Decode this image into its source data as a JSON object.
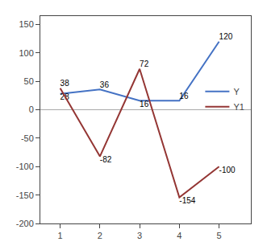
{
  "chart_data": {
    "type": "line",
    "x": [
      1,
      2,
      3,
      4,
      5
    ],
    "series": [
      {
        "name": "Y",
        "color": "#4472C4",
        "values": [
          28,
          36,
          16,
          16,
          120
        ]
      },
      {
        "name": "Y1",
        "color": "#943634",
        "values": [
          38,
          -82,
          72,
          -154,
          -100
        ]
      }
    ],
    "xlim": [
      0.5,
      5.8
    ],
    "ylim": [
      -200,
      165
    ],
    "xticks": [
      1,
      2,
      3,
      4,
      5
    ],
    "yticks": [
      -200,
      -150,
      -100,
      -50,
      0,
      50,
      100,
      150
    ],
    "data_labels": true,
    "legend": "right",
    "grid": false
  }
}
